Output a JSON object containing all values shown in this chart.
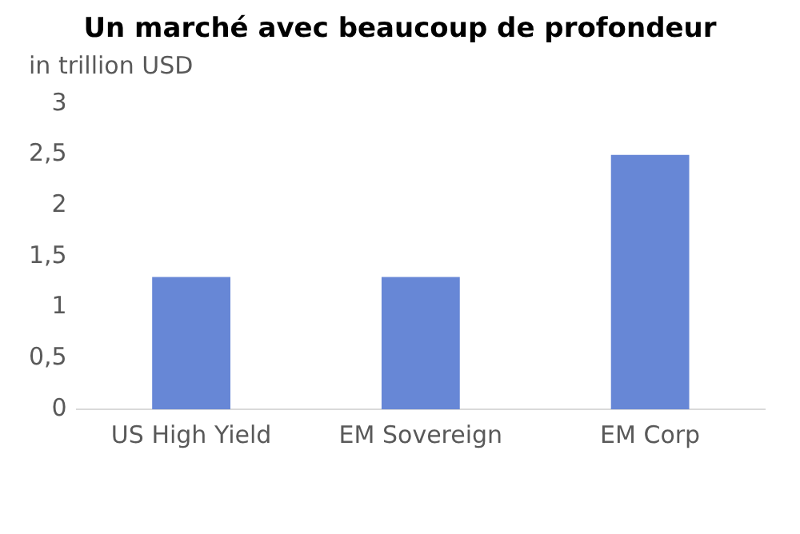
{
  "chart_data": {
    "type": "bar",
    "title": "Un marché avec beaucoup de profondeur",
    "ylabel": "in trillion USD",
    "categories": [
      "US High Yield",
      "EM Sovereign",
      "EM Corp"
    ],
    "values": [
      1.3,
      1.3,
      2.5
    ],
    "color": "#6787d6",
    "ylim": [
      0,
      3
    ],
    "yticks": [
      0,
      {
        "value": 0.5,
        "label": "0,5"
      },
      1,
      {
        "value": 1.5,
        "label": "1,5"
      },
      2,
      {
        "value": 2.5,
        "label": "2,5"
      },
      3
    ],
    "grid": false,
    "legend": false
  }
}
